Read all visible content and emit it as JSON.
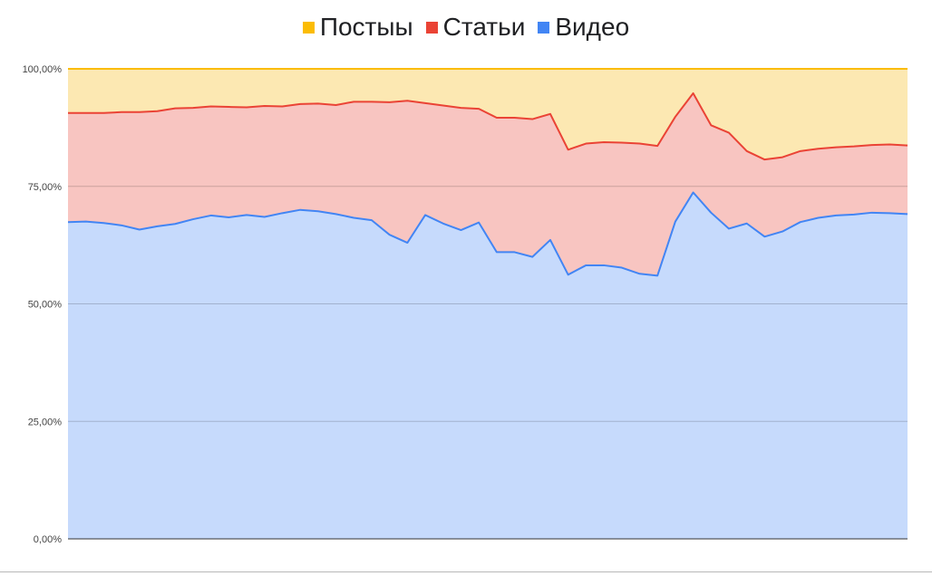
{
  "chart_data": {
    "type": "area",
    "stacked": "percent",
    "title": "",
    "xlabel": "",
    "ylabel": "",
    "ylim": [
      0,
      100
    ],
    "yticks": [
      "0,00%",
      "25,00%",
      "50,00%",
      "75,00%",
      "100,00%"
    ],
    "ytick_values": [
      0,
      25,
      50,
      75,
      100
    ],
    "grid": true,
    "legend_position": "top",
    "series": [
      {
        "name": "Постыы",
        "color": "#fbbc04",
        "fill": "#fce8b2",
        "upper": [
          100,
          100,
          100,
          100,
          100,
          100,
          100,
          100,
          100,
          100,
          100,
          100,
          100,
          100,
          100,
          100,
          100,
          100,
          100,
          100,
          100,
          100,
          100,
          100,
          100,
          100,
          100,
          100,
          100,
          100,
          100,
          100,
          100,
          100,
          100,
          100,
          100,
          100,
          100,
          100,
          100,
          100,
          100,
          100,
          100,
          100,
          100,
          100
        ]
      },
      {
        "name": "Статьи",
        "color": "#ea4335",
        "fill": "#f8c5c1",
        "upper": [
          90.6,
          90.6,
          90.6,
          90.8,
          90.8,
          91.0,
          91.6,
          91.7,
          92.0,
          91.9,
          91.8,
          92.1,
          92.0,
          92.5,
          92.6,
          92.3,
          93.0,
          93.0,
          92.9,
          93.2,
          92.7,
          92.2,
          91.7,
          91.5,
          89.6,
          89.6,
          89.3,
          90.4,
          82.8,
          84.1,
          84.4,
          84.3,
          84.1,
          83.6,
          89.8,
          94.8,
          88.0,
          86.4,
          82.5,
          80.7,
          81.2,
          82.5,
          83.0,
          83.3,
          83.5,
          83.8,
          83.9,
          83.7
        ]
      },
      {
        "name": "Видео",
        "color": "#4285f4",
        "fill": "#c6dafc",
        "upper": [
          67.4,
          67.5,
          67.2,
          66.7,
          65.8,
          66.5,
          67.0,
          68.0,
          68.8,
          68.4,
          68.9,
          68.5,
          69.3,
          70.0,
          69.7,
          69.1,
          68.3,
          67.8,
          64.7,
          63.0,
          68.9,
          67.1,
          65.7,
          67.3,
          61.0,
          61.0,
          60.0,
          63.6,
          56.2,
          58.2,
          58.2,
          57.7,
          56.4,
          56.0,
          67.5,
          73.7,
          69.4,
          66.0,
          67.1,
          64.3,
          65.4,
          67.4,
          68.3,
          68.8,
          69.0,
          69.4,
          69.3,
          69.1
        ]
      }
    ]
  }
}
